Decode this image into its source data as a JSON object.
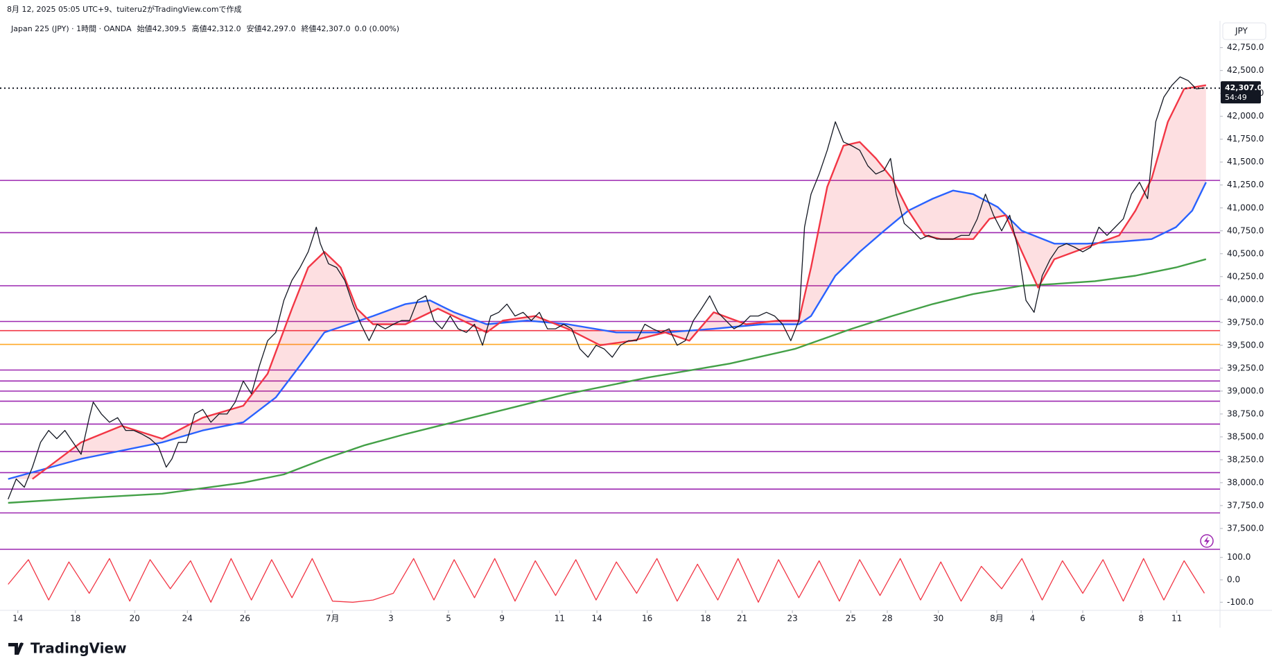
{
  "header": {
    "caption": "8月 12, 2025 05:05 UTC+9、tuiteru2がTradingView.comで作成"
  },
  "footer": {
    "logo": "TradingView"
  },
  "chart_data": [
    {
      "type": "line",
      "title": "Japan 225 (JPY) · 1時間 · OANDA",
      "ohlc": [
        {
          "label": "始値",
          "value": "42,309.5"
        },
        {
          "label": "高値",
          "value": "42,312.0"
        },
        {
          "label": "安値",
          "value": "42,297.0"
        },
        {
          "label": "終値",
          "value": "42,307.0"
        }
      ],
      "change": "0.0 (0.00%)",
      "currency": "JPY",
      "last_price": {
        "value": 42307,
        "label": "42,307.0"
      },
      "countdown": "54:49",
      "xlim": [
        0,
        1500
      ],
      "xticks": [
        {
          "value": 22,
          "label": "14"
        },
        {
          "value": 93,
          "label": "18"
        },
        {
          "value": 166,
          "label": "20"
        },
        {
          "value": 231,
          "label": "24"
        },
        {
          "value": 302,
          "label": "26"
        },
        {
          "value": 410,
          "label": "7月"
        },
        {
          "value": 482,
          "label": "3"
        },
        {
          "value": 553,
          "label": "5"
        },
        {
          "value": 619,
          "label": "9"
        },
        {
          "value": 690,
          "label": "11"
        },
        {
          "value": 736,
          "label": "14"
        },
        {
          "value": 798,
          "label": "16"
        },
        {
          "value": 870,
          "label": "18"
        },
        {
          "value": 915,
          "label": "21"
        },
        {
          "value": 977,
          "label": "23"
        },
        {
          "value": 1049,
          "label": "25"
        },
        {
          "value": 1094,
          "label": "28"
        },
        {
          "value": 1157,
          "label": "30"
        },
        {
          "value": 1229,
          "label": "8月"
        },
        {
          "value": 1273,
          "label": "4"
        },
        {
          "value": 1335,
          "label": "6"
        },
        {
          "value": 1407,
          "label": "8"
        },
        {
          "value": 1451,
          "label": "11"
        }
      ],
      "ylim": [
        37280,
        43020
      ],
      "yticks": [
        {
          "value": 37500,
          "label": "37,500.0"
        },
        {
          "value": 37750,
          "label": "37,750.0"
        },
        {
          "value": 38000,
          "label": "38,000.0"
        },
        {
          "value": 38250,
          "label": "38,250.0"
        },
        {
          "value": 38500,
          "label": "38,500.0"
        },
        {
          "value": 38750,
          "label": "38,750.0"
        },
        {
          "value": 39000,
          "label": "39,000.0"
        },
        {
          "value": 39250,
          "label": "39,250.0"
        },
        {
          "value": 39500,
          "label": "39,500.0"
        },
        {
          "value": 39750,
          "label": "39,750.0"
        },
        {
          "value": 40000,
          "label": "40,000.0"
        },
        {
          "value": 40250,
          "label": "40,250.0"
        },
        {
          "value": 40500,
          "label": "40,500.0"
        },
        {
          "value": 40750,
          "label": "40,750.0"
        },
        {
          "value": 41000,
          "label": "41,000.0"
        },
        {
          "value": 41250,
          "label": "41,250.0"
        },
        {
          "value": 41500,
          "label": "41,500.0"
        },
        {
          "value": 41750,
          "label": "41,750.0"
        },
        {
          "value": 42000,
          "label": "42,000.0"
        },
        {
          "value": 42250,
          "label": "42,250.0"
        },
        {
          "value": 42500,
          "label": "42,500.0"
        },
        {
          "value": 42750,
          "label": "42,750.0"
        }
      ],
      "levels": [
        {
          "value": 41300,
          "color": "#9c27b0"
        },
        {
          "value": 40730,
          "color": "#9c27b0"
        },
        {
          "value": 40150,
          "color": "#9c27b0"
        },
        {
          "value": 39760,
          "color": "#9c27b0"
        },
        {
          "value": 39660,
          "color": "#f23645"
        },
        {
          "value": 39510,
          "color": "#ffa726"
        },
        {
          "value": 39230,
          "color": "#9c27b0"
        },
        {
          "value": 39110,
          "color": "#9c27b0"
        },
        {
          "value": 39000,
          "color": "#9c27b0"
        },
        {
          "value": 38890,
          "color": "#9c27b0"
        },
        {
          "value": 38640,
          "color": "#9c27b0"
        },
        {
          "value": 38340,
          "color": "#9c27b0"
        },
        {
          "value": 38110,
          "color": "#9c27b0"
        },
        {
          "value": 37930,
          "color": "#9c27b0"
        },
        {
          "value": 37670,
          "color": "#9c27b0"
        }
      ],
      "series": [
        {
          "color": "#131722",
          "x": [
            10,
            20,
            30,
            40,
            50,
            60,
            70,
            80,
            90,
            100,
            110,
            115,
            125,
            135,
            145,
            155,
            165,
            175,
            185,
            195,
            205,
            212,
            220,
            230,
            240,
            250,
            260,
            270,
            280,
            290,
            300,
            310,
            320,
            330,
            340,
            350,
            360,
            370,
            380,
            390,
            395,
            405,
            415,
            425,
            435,
            445,
            455,
            465,
            475,
            485,
            495,
            505,
            515,
            525,
            535,
            545,
            555,
            565,
            575,
            585,
            595,
            605,
            615,
            625,
            635,
            645,
            655,
            665,
            675,
            685,
            695,
            705,
            715,
            725,
            735,
            745,
            755,
            765,
            775,
            785,
            795,
            805,
            815,
            825,
            835,
            845,
            855,
            865,
            875,
            885,
            895,
            905,
            915,
            925,
            935,
            945,
            955,
            965,
            975,
            985,
            992,
            1000,
            1010,
            1020,
            1030,
            1040,
            1050,
            1060,
            1070,
            1080,
            1090,
            1098,
            1105,
            1115,
            1125,
            1135,
            1145,
            1155,
            1165,
            1175,
            1185,
            1195,
            1205,
            1215,
            1225,
            1235,
            1245,
            1255,
            1265,
            1275,
            1285,
            1295,
            1305,
            1315,
            1325,
            1335,
            1345,
            1355,
            1365,
            1375,
            1385,
            1395,
            1405,
            1415,
            1425,
            1435,
            1445,
            1455,
            1465,
            1475,
            1485
          ],
          "values": [
            37820,
            38040,
            37950,
            38170,
            38440,
            38570,
            38480,
            38570,
            38440,
            38310,
            38710,
            38880,
            38750,
            38660,
            38710,
            38570,
            38570,
            38530,
            38480,
            38400,
            38170,
            38260,
            38440,
            38440,
            38750,
            38800,
            38660,
            38750,
            38750,
            38880,
            39110,
            38970,
            39280,
            39550,
            39640,
            39990,
            40210,
            40350,
            40520,
            40790,
            40610,
            40390,
            40350,
            40210,
            39950,
            39730,
            39550,
            39730,
            39680,
            39730,
            39770,
            39770,
            39990,
            40040,
            39770,
            39680,
            39820,
            39680,
            39640,
            39730,
            39500,
            39820,
            39860,
            39950,
            39820,
            39860,
            39770,
            39860,
            39680,
            39680,
            39730,
            39680,
            39460,
            39370,
            39500,
            39460,
            39370,
            39500,
            39550,
            39550,
            39730,
            39680,
            39640,
            39680,
            39500,
            39550,
            39770,
            39900,
            40040,
            39860,
            39770,
            39680,
            39730,
            39820,
            39820,
            39860,
            39820,
            39730,
            39550,
            39770,
            40790,
            41150,
            41370,
            41630,
            41940,
            41720,
            41680,
            41630,
            41460,
            41370,
            41410,
            41540,
            41150,
            40830,
            40750,
            40660,
            40700,
            40660,
            40660,
            40660,
            40700,
            40700,
            40880,
            41150,
            40920,
            40750,
            40920,
            40570,
            39990,
            39860,
            40260,
            40440,
            40570,
            40610,
            40570,
            40520,
            40570,
            40790,
            40700,
            40790,
            40880,
            41150,
            41280,
            41100,
            41940,
            42210,
            42340,
            42430,
            42390,
            42300,
            42310
          ]
        },
        {
          "color": "#f23645",
          "x": [
            40,
            100,
            150,
            200,
            250,
            300,
            330,
            360,
            380,
            400,
            420,
            440,
            460,
            500,
            540,
            580,
            600,
            620,
            660,
            700,
            740,
            780,
            820,
            850,
            880,
            920,
            960,
            985,
            1000,
            1020,
            1040,
            1060,
            1080,
            1100,
            1120,
            1140,
            1160,
            1200,
            1220,
            1240,
            1260,
            1280,
            1300,
            1340,
            1380,
            1400,
            1420,
            1440,
            1460,
            1487
          ],
          "values": [
            38040,
            38440,
            38620,
            38480,
            38710,
            38840,
            39190,
            39900,
            40350,
            40520,
            40350,
            39900,
            39730,
            39730,
            39900,
            39730,
            39640,
            39770,
            39820,
            39680,
            39500,
            39550,
            39640,
            39550,
            39860,
            39730,
            39770,
            39770,
            40350,
            41230,
            41680,
            41720,
            41540,
            41320,
            40970,
            40700,
            40660,
            40660,
            40880,
            40920,
            40520,
            40130,
            40440,
            40570,
            40700,
            40970,
            41320,
            41940,
            42300,
            42340
          ]
        },
        {
          "color": "#2962ff",
          "x": [
            10,
            100,
            200,
            250,
            300,
            340,
            370,
            400,
            430,
            460,
            500,
            530,
            560,
            600,
            650,
            700,
            760,
            820,
            880,
            940,
            985,
            1000,
            1030,
            1060,
            1090,
            1120,
            1150,
            1175,
            1200,
            1230,
            1260,
            1300,
            1340,
            1380,
            1420,
            1450,
            1470,
            1487
          ],
          "values": [
            38040,
            38260,
            38440,
            38570,
            38660,
            38930,
            39280,
            39640,
            39730,
            39820,
            39950,
            39990,
            39860,
            39730,
            39770,
            39730,
            39640,
            39640,
            39680,
            39730,
            39730,
            39820,
            40260,
            40520,
            40750,
            40970,
            41100,
            41190,
            41150,
            41010,
            40750,
            40610,
            40610,
            40630,
            40660,
            40790,
            40970,
            41280
          ]
        },
        {
          "color": "#43a047",
          "x": [
            10,
            100,
            200,
            300,
            350,
            400,
            450,
            500,
            550,
            600,
            700,
            800,
            900,
            980,
            1050,
            1100,
            1150,
            1200,
            1260,
            1300,
            1350,
            1400,
            1450,
            1487
          ],
          "values": [
            37780,
            37830,
            37880,
            38000,
            38090,
            38260,
            38410,
            38530,
            38640,
            38750,
            38970,
            39150,
            39300,
            39460,
            39680,
            39820,
            39950,
            40060,
            40150,
            40170,
            40200,
            40260,
            40350,
            40440
          ]
        }
      ]
    },
    {
      "type": "line",
      "xlim": [
        0,
        1500
      ],
      "ylim": [
        -130,
        130
      ],
      "yticks": [
        {
          "value": 100,
          "label": "100.0"
        },
        {
          "value": 0,
          "label": "0.0"
        },
        {
          "value": -100,
          "label": "-100.0"
        }
      ],
      "series": [
        {
          "color": "#f23645",
          "x": [
            10,
            35,
            60,
            85,
            110,
            135,
            160,
            185,
            210,
            235,
            260,
            285,
            310,
            335,
            360,
            385,
            410,
            435,
            460,
            485,
            510,
            535,
            560,
            585,
            610,
            635,
            660,
            685,
            710,
            735,
            760,
            785,
            810,
            835,
            860,
            885,
            910,
            935,
            960,
            985,
            1010,
            1035,
            1060,
            1085,
            1110,
            1135,
            1160,
            1185,
            1210,
            1235,
            1260,
            1285,
            1310,
            1335,
            1360,
            1385,
            1410,
            1435,
            1460,
            1485
          ],
          "values": [
            -20,
            90,
            -90,
            80,
            -60,
            95,
            -95,
            90,
            -40,
            85,
            -100,
            95,
            -90,
            90,
            -80,
            95,
            -95,
            -100,
            -90,
            -60,
            95,
            -90,
            90,
            -80,
            95,
            -95,
            85,
            -70,
            90,
            -90,
            80,
            -60,
            95,
            -95,
            70,
            -90,
            95,
            -100,
            90,
            -80,
            85,
            -95,
            90,
            -70,
            95,
            -90,
            80,
            -95,
            60,
            -40,
            95,
            -90,
            85,
            -60,
            90,
            -95,
            95,
            -90,
            85,
            -60
          ]
        }
      ]
    }
  ]
}
